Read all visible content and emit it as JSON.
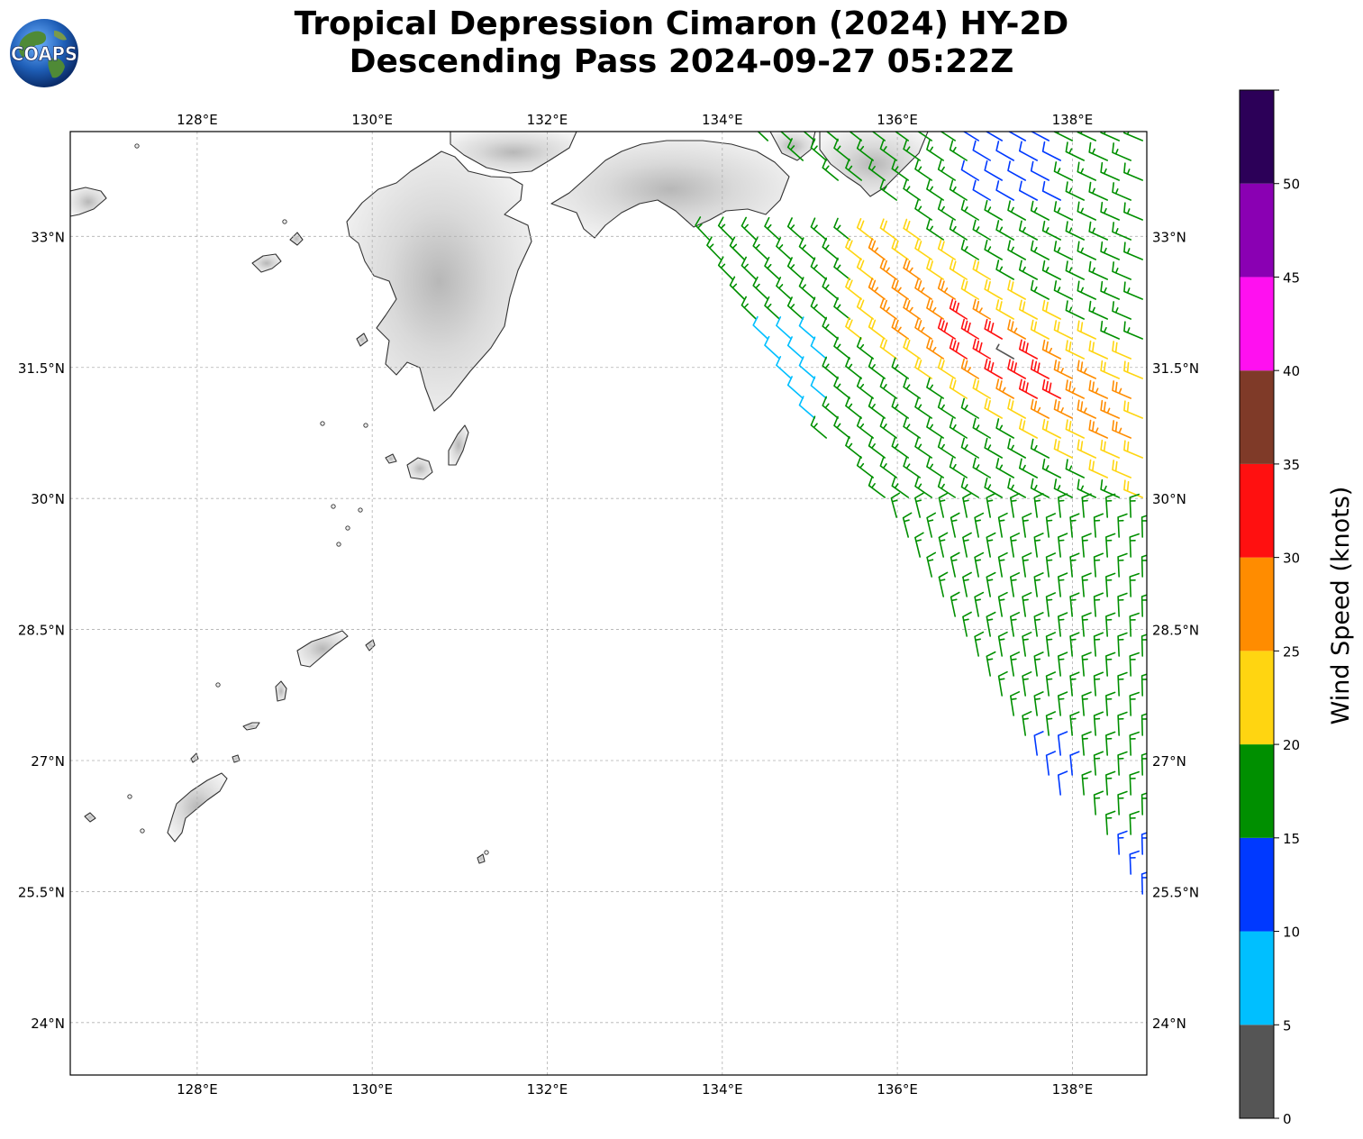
{
  "title": {
    "line1": "Tropical Depression Cimaron (2024) HY-2D",
    "line2": "Descending Pass 2024-09-27 05:22Z"
  },
  "logo": {
    "text": "COAPS",
    "icon": "globe-icon"
  },
  "map": {
    "lon_range": [
      126.55,
      138.85
    ],
    "lat_range": [
      23.4,
      34.2
    ],
    "lon_ticks": [
      "128°E",
      "130°E",
      "132°E",
      "134°E",
      "136°E",
      "138°E"
    ],
    "lon_tick_values": [
      128,
      130,
      132,
      134,
      136,
      138
    ],
    "lat_ticks": [
      "24°N",
      "25.5°N",
      "27°N",
      "28.5°N",
      "30°N",
      "31.5°N",
      "33°N"
    ],
    "lat_tick_values": [
      24,
      25.5,
      27,
      28.5,
      30,
      31.5,
      33
    ],
    "grid": true,
    "land_style": "grey terrain shading with black coastlines",
    "wind_barbs": "colored by speed; strongest (red/orange) near 31.5°N 137.5°E"
  },
  "colorbar": {
    "label": "Wind Speed (knots)",
    "tick_labels": [
      "0",
      "5",
      "10",
      "15",
      "20",
      "25",
      "30",
      "35",
      "40",
      "45",
      "50"
    ],
    "bins": [
      {
        "min": 0,
        "max": 5,
        "color": "#555555"
      },
      {
        "min": 5,
        "max": 10,
        "color": "#00bfff"
      },
      {
        "min": 10,
        "max": 15,
        "color": "#0039ff"
      },
      {
        "min": 15,
        "max": 20,
        "color": "#008f00"
      },
      {
        "min": 20,
        "max": 25,
        "color": "#ffd511"
      },
      {
        "min": 25,
        "max": 30,
        "color": "#ff8c00"
      },
      {
        "min": 30,
        "max": 35,
        "color": "#ff1010"
      },
      {
        "min": 35,
        "max": 40,
        "color": "#7f3a28"
      },
      {
        "min": 40,
        "max": 45,
        "color": "#ff10f0"
      },
      {
        "min": 45,
        "max": 50,
        "color": "#8a00b3"
      },
      {
        "min": 50,
        "max": 55,
        "color": "#2c0058"
      }
    ]
  }
}
